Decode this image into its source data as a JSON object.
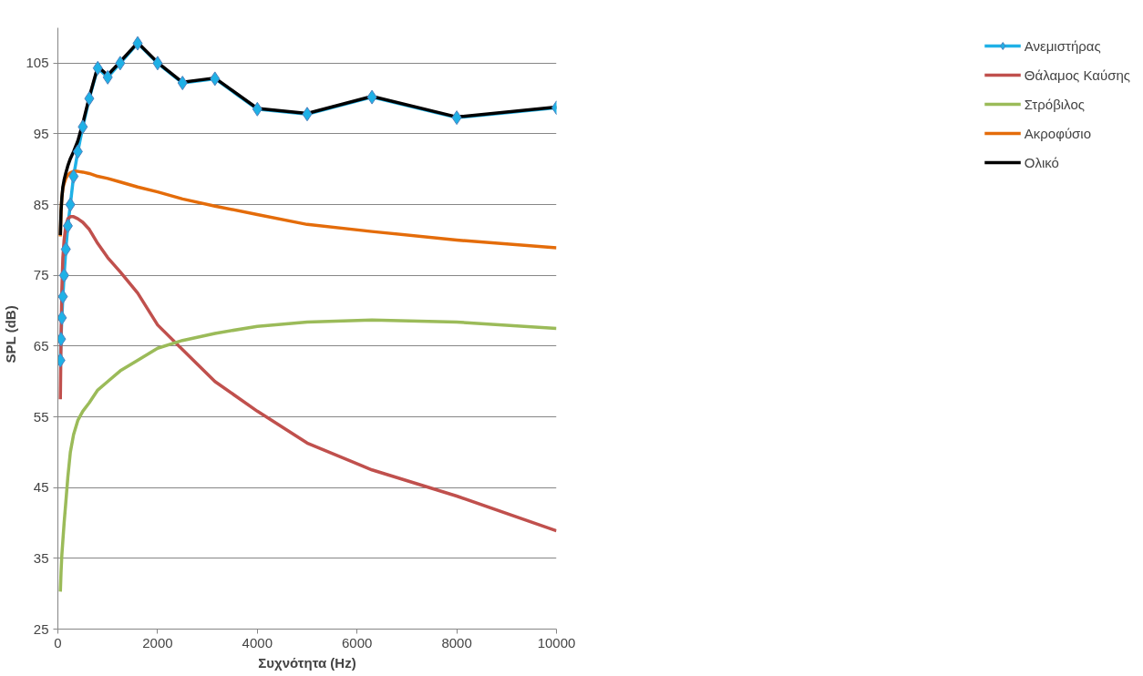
{
  "chart_data": {
    "type": "line",
    "xlabel": "Συχνότητα (Hz)",
    "ylabel": "SPL    (dB)",
    "x": [
      50,
      63,
      80,
      100,
      125,
      160,
      200,
      250,
      315,
      400,
      500,
      630,
      800,
      1000,
      1250,
      1600,
      2000,
      2500,
      3150,
      4000,
      5000,
      6300,
      8000,
      10000
    ],
    "xlim": [
      0,
      10000
    ],
    "xticks": [
      0,
      2000,
      4000,
      6000,
      8000,
      10000
    ],
    "ylim": [
      25,
      110
    ],
    "yticks": [
      25,
      35,
      45,
      55,
      65,
      75,
      85,
      95,
      105
    ],
    "grid": "y",
    "legend": "right",
    "line_style": "solid",
    "series": [
      {
        "name": "Ανεμιστήρας",
        "color": "#1fb1e6",
        "marker": "diamond",
        "values": [
          63,
          66,
          69,
          72,
          75,
          78.7,
          82,
          85,
          89,
          92.5,
          96,
          100,
          104.3,
          103,
          105,
          107.8,
          105,
          102.2,
          102.8,
          98.5,
          97.8,
          100.2,
          97.3,
          98.7
        ]
      },
      {
        "name": "Θάλαμος Καύσης",
        "color": "#c0504d",
        "marker": "none",
        "values": [
          57.5,
          66,
          73,
          77.5,
          80,
          82,
          83,
          83.3,
          83.3,
          83,
          82.5,
          81.5,
          79.5,
          77.5,
          75.5,
          72.5,
          68,
          64.5,
          60,
          55.8,
          51.3,
          47.5,
          43.8,
          38.9
        ]
      },
      {
        "name": "Στρόβιλος",
        "color": "#9bbb59",
        "marker": "none",
        "values": [
          30.3,
          33,
          35.5,
          37.5,
          40,
          43,
          46.5,
          50,
          52.5,
          54.5,
          55.8,
          57,
          58.8,
          60,
          61.5,
          63,
          64.7,
          65.8,
          66.8,
          67.8,
          68.4,
          68.7,
          68.4,
          67.5
        ]
      },
      {
        "name": "Ακροφύσιο",
        "color": "#e46c0a",
        "marker": "none",
        "values": [
          80.5,
          84,
          86,
          87.3,
          88,
          88.7,
          89.2,
          89.5,
          89.7,
          89.7,
          89.6,
          89.4,
          89,
          88.7,
          88.2,
          87.5,
          86.8,
          85.8,
          84.8,
          83.6,
          82.2,
          81.2,
          80,
          78.9
        ]
      },
      {
        "name": "Ολικό",
        "color": "#000000",
        "marker": "none",
        "values": [
          80.7,
          84,
          86,
          87.5,
          88.5,
          89.5,
          90.5,
          91.5,
          92.5,
          94,
          96.5,
          100.2,
          104.5,
          103.3,
          105.2,
          107.9,
          105.1,
          102.3,
          102.9,
          98.6,
          97.9,
          100.3,
          97.4,
          98.8
        ]
      }
    ]
  }
}
